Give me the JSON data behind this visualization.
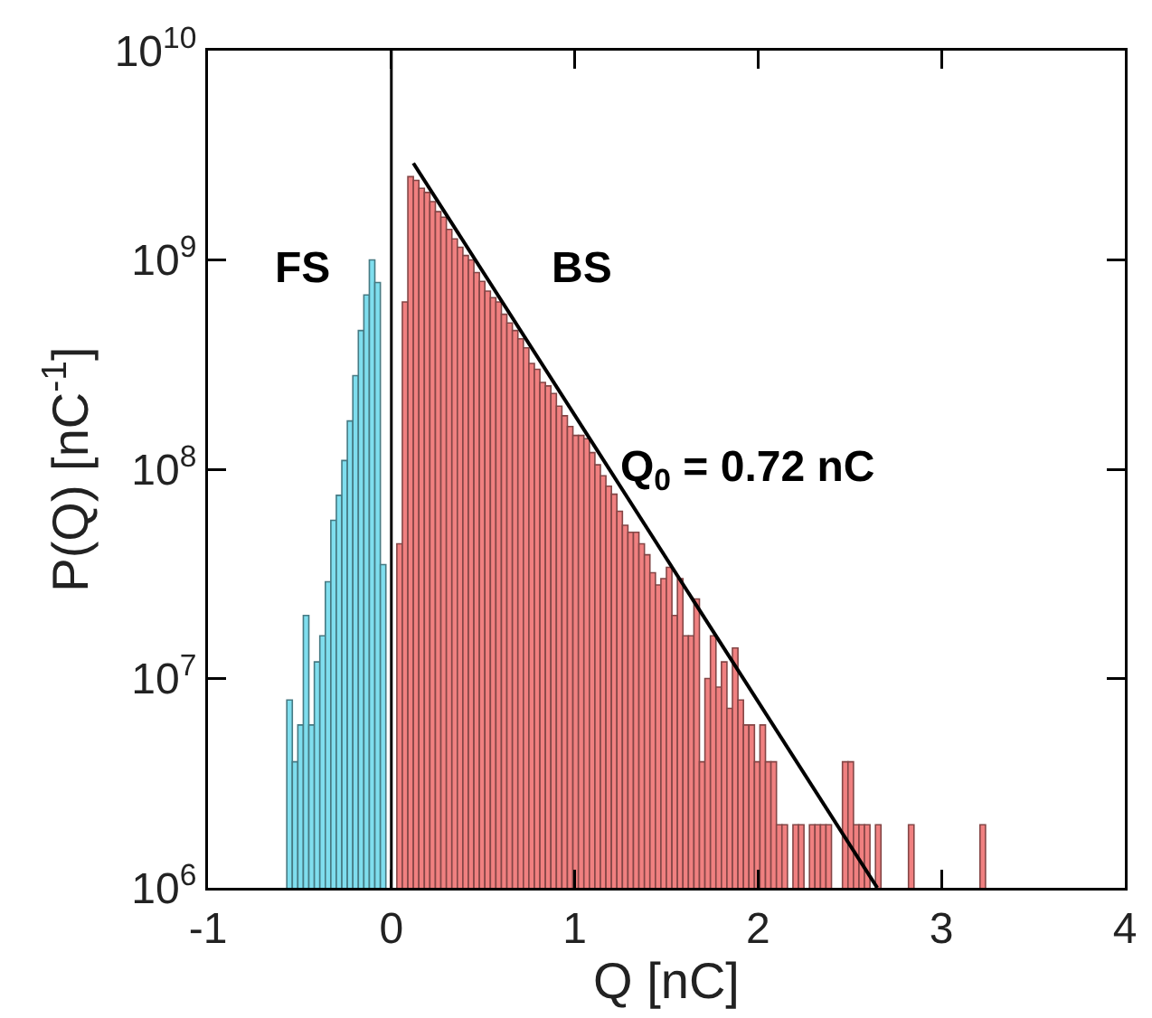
{
  "chart_data": {
    "type": "histogram",
    "xlabel": "Q [nC]",
    "ylabel": "P(Q) [nC$^{-1}$]",
    "log": "y",
    "grid": false,
    "xlim": [
      -1,
      4
    ],
    "xticks": [
      -1,
      0,
      1,
      2,
      3,
      4
    ],
    "ylim": [
      1000000,
      10000000000
    ],
    "yticks": [
      {
        "value": 1000000,
        "label": "10$^{6}$"
      },
      {
        "value": 10000000,
        "label": "10$^{7}$"
      },
      {
        "value": 100000000,
        "label": "10$^{8}$"
      },
      {
        "value": 1000000000,
        "label": "10$^{9}$"
      },
      {
        "value": 10000000000,
        "label": "10$^{10}$"
      }
    ],
    "ref_lines": [
      {
        "axis": "x",
        "value": 0,
        "color": "#000000"
      }
    ],
    "annotations": [
      "FS",
      "BS",
      "Q$_{0}$ = 0.72 nC"
    ],
    "series": [
      {
        "color": "#7fdeee",
        "bins": [
          -0.57,
          -0.54,
          -0.51,
          -0.48,
          -0.45,
          -0.42,
          -0.39,
          -0.36,
          -0.33,
          -0.3,
          -0.27,
          -0.24,
          -0.21,
          -0.18,
          -0.15,
          -0.12,
          -0.09,
          -0.06,
          -0.03
        ],
        "values": [
          7900000,
          4000000,
          6000000,
          20000000,
          6000000,
          12000000,
          16000000,
          29000000,
          57000000,
          75000000,
          110000000,
          170000000,
          280000000,
          460000000,
          680000000,
          1000000000,
          780000000,
          35000000
        ]
      },
      {
        "color": "#f08080",
        "bins": [
          0.03,
          0.06,
          0.09,
          0.12,
          0.15,
          0.18,
          0.21,
          0.24,
          0.27,
          0.3,
          0.33,
          0.36,
          0.39,
          0.42,
          0.45,
          0.48,
          0.51,
          0.54,
          0.57,
          0.6,
          0.63,
          0.66,
          0.69,
          0.72,
          0.75,
          0.78,
          0.81,
          0.84,
          0.87,
          0.9,
          0.93,
          0.96,
          0.99,
          1.02,
          1.05,
          1.08,
          1.11,
          1.14,
          1.17,
          1.2,
          1.23,
          1.26,
          1.29,
          1.32,
          1.35,
          1.38,
          1.41,
          1.44,
          1.47,
          1.5,
          1.53,
          1.56,
          1.59,
          1.62,
          1.65,
          1.68,
          1.71,
          1.74,
          1.77,
          1.8,
          1.83,
          1.86,
          1.89,
          1.92,
          1.95,
          1.98,
          2.01,
          2.04,
          2.07,
          2.1,
          2.13,
          2.16,
          2.19,
          2.22,
          2.25,
          2.28,
          2.31,
          2.34,
          2.37,
          2.4,
          2.43,
          2.46,
          2.49,
          2.52,
          2.55,
          2.58,
          2.61,
          2.64,
          2.67,
          2.7,
          2.73,
          2.76,
          2.79,
          2.82,
          2.85,
          2.88,
          2.91,
          2.94,
          2.97,
          3.0,
          3.03,
          3.06,
          3.09,
          3.12,
          3.15,
          3.18,
          3.21,
          3.24
        ],
        "values": [
          44000000,
          630000000,
          2500000000,
          2400000000,
          2200000000,
          2100000000,
          1900000000,
          1700000000,
          1600000000,
          1400000000,
          1260000000,
          1150000000,
          1050000000,
          1000000000,
          870000000,
          790000000,
          710000000,
          660000000,
          630000000,
          550000000,
          500000000,
          460000000,
          420000000,
          380000000,
          320000000,
          300000000,
          260000000,
          250000000,
          230000000,
          200000000,
          180000000,
          160000000,
          145000000,
          145000000,
          140000000,
          120000000,
          105000000,
          93000000,
          83000000,
          76000000,
          63000000,
          54000000,
          50000000,
          50000000,
          44000000,
          39000000,
          32000000,
          28000000,
          30000000,
          34000000,
          20000000,
          30000000,
          16000000,
          16000000,
          24000000,
          4000000,
          10000000,
          16000000,
          9100000,
          12000000,
          7200000,
          14000000,
          7900000,
          6000000,
          6000000,
          4000000,
          6000000,
          4000000,
          4000000,
          2000000,
          2000000,
          null,
          2000000,
          2000000,
          null,
          2000000,
          2000000,
          2000000,
          2000000,
          null,
          null,
          4000000,
          4000000,
          2000000,
          2000000,
          2000000,
          null,
          2000000,
          null,
          null,
          null,
          null,
          null,
          2000000,
          null,
          null,
          null,
          null,
          null,
          null,
          null,
          null,
          null,
          null,
          null,
          null,
          2000000
        ]
      },
      {
        "type": "line",
        "color": "#000000",
        "x": [
          0.12,
          2.65
        ],
        "values": [
          2900000000,
          1000000
        ]
      }
    ]
  }
}
